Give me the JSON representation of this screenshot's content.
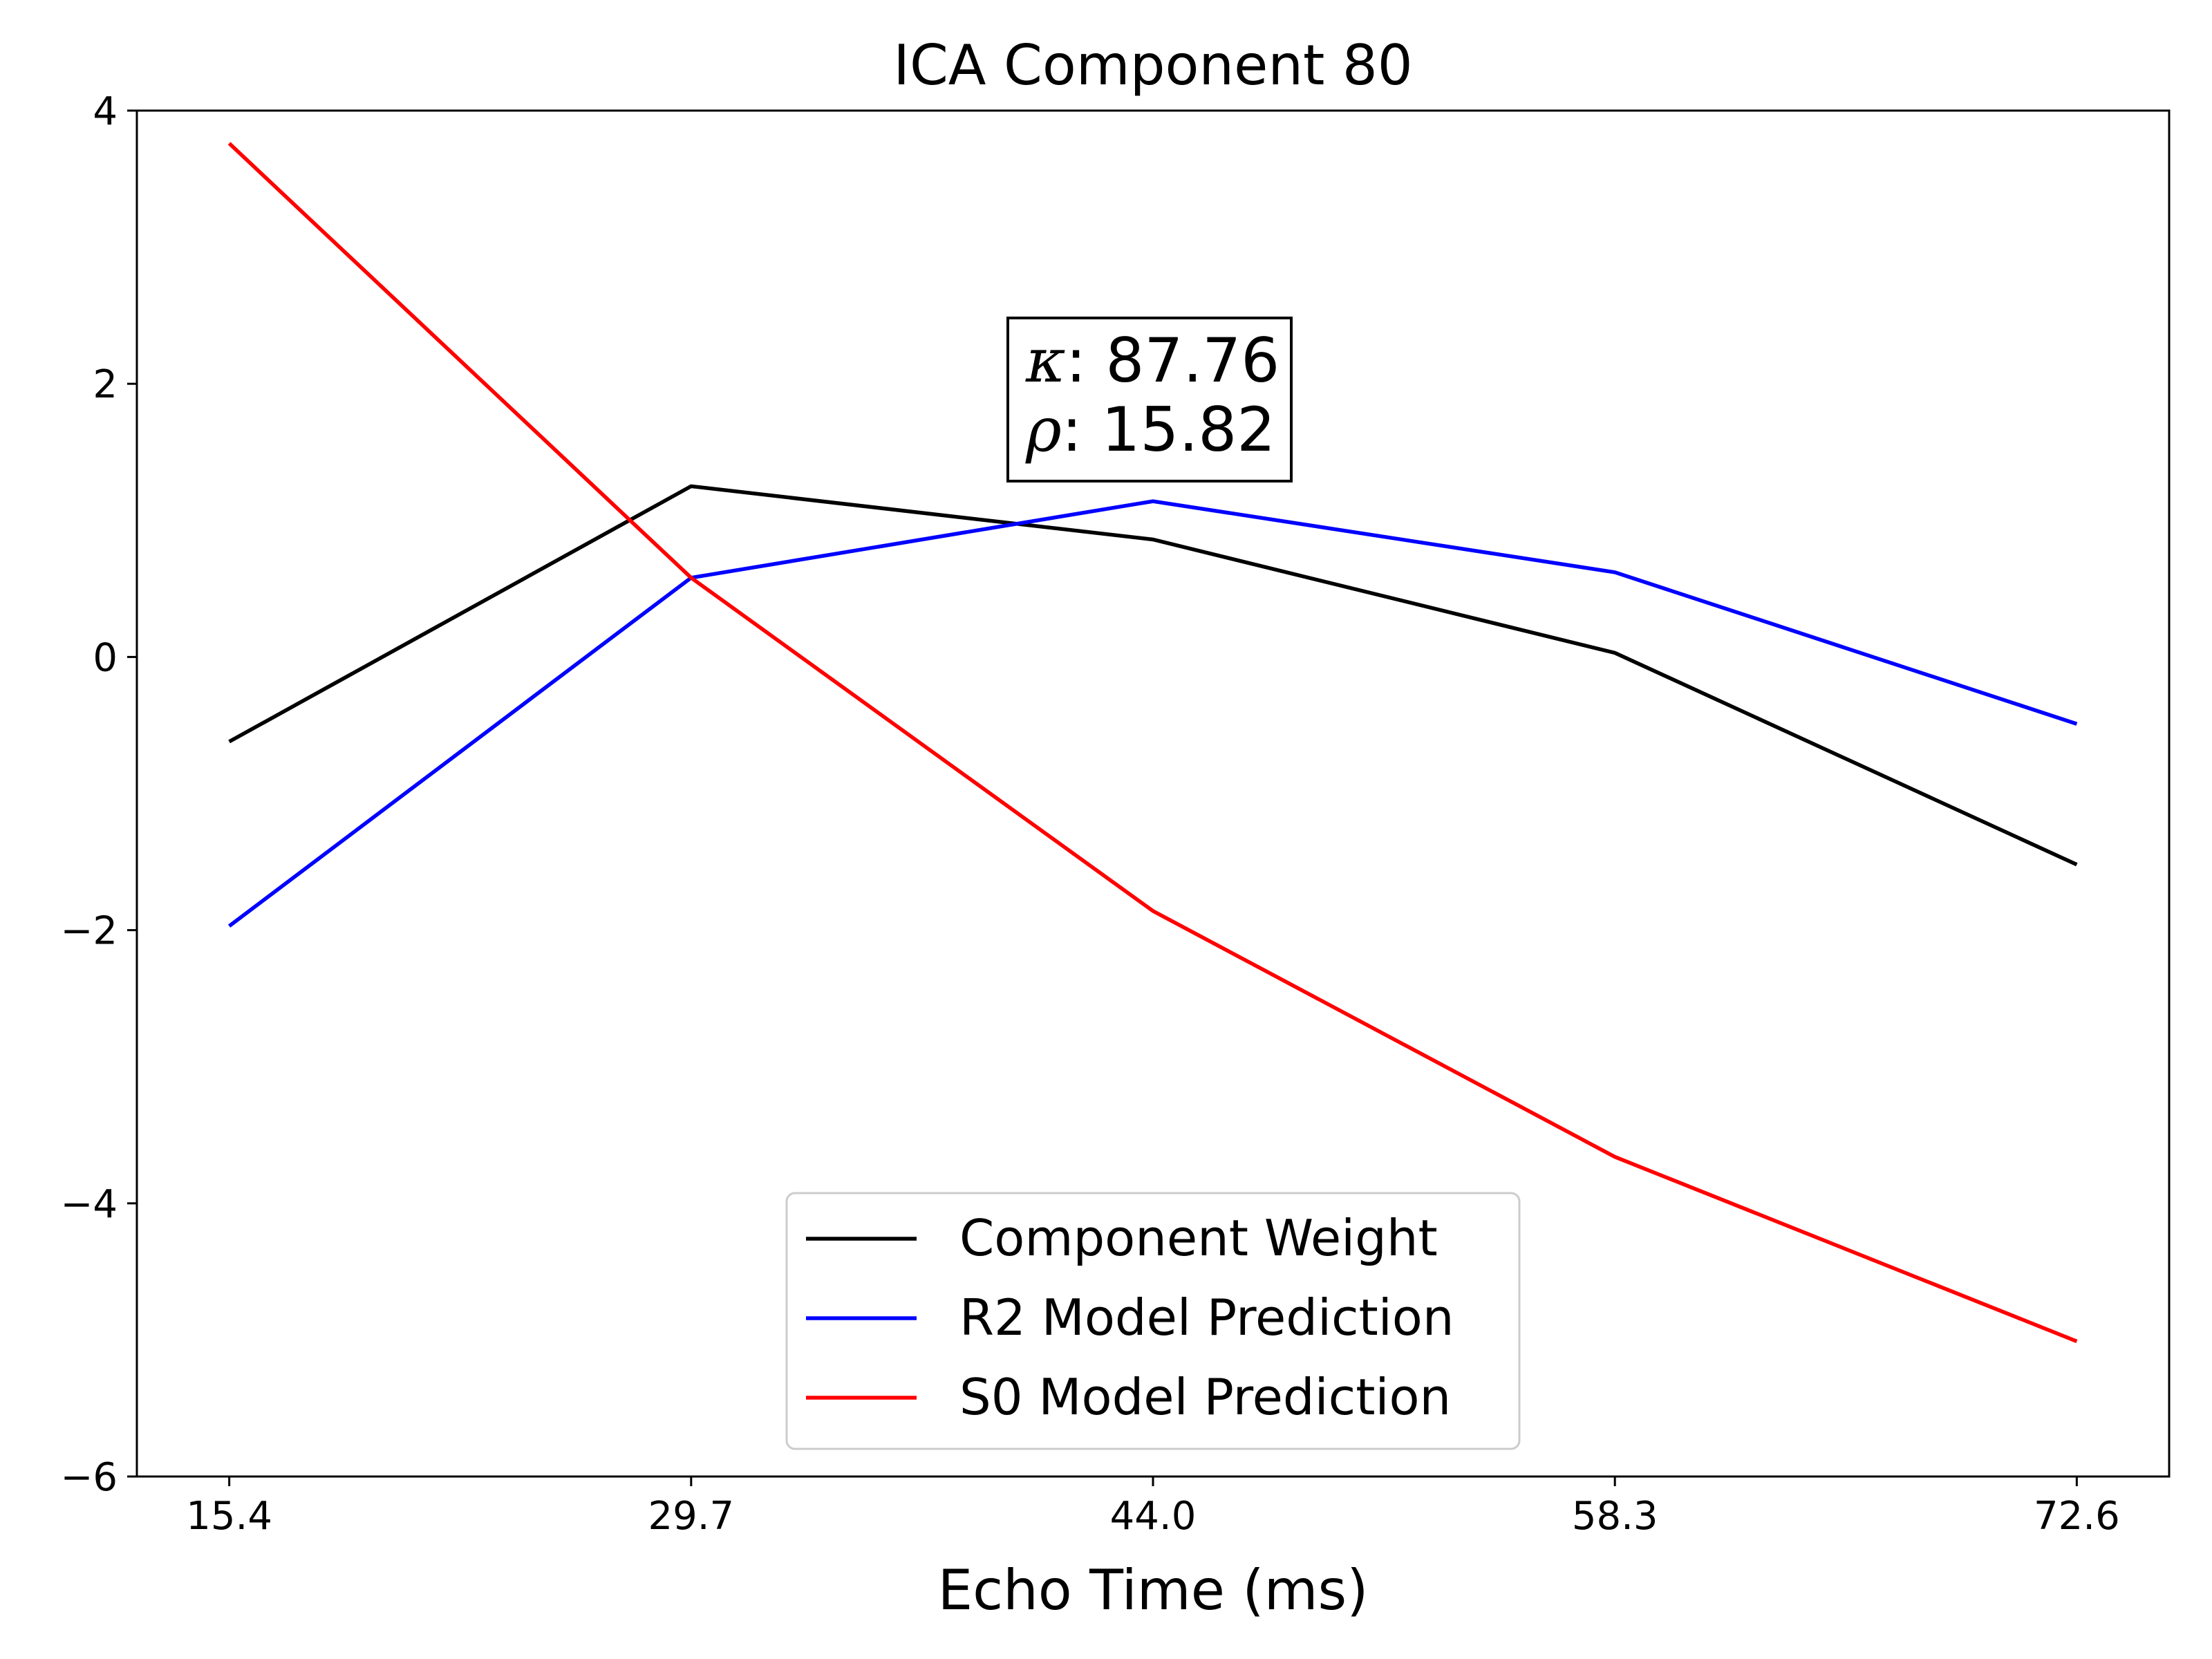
{
  "chart_data": {
    "type": "line",
    "title": "ICA Component 80",
    "xlabel": "Echo Time (ms)",
    "ylabel": "",
    "x": [
      15.4,
      29.7,
      44.0,
      58.3,
      72.6
    ],
    "xticks": [
      "15.4",
      "29.7",
      "44.0",
      "58.3",
      "72.6"
    ],
    "yticks": [
      4,
      2,
      0,
      -2,
      -4,
      -6
    ],
    "ytick_labels": [
      "4",
      "2",
      "0",
      "−2",
      "−4",
      "−6"
    ],
    "xlim": [
      12.54,
      75.46
    ],
    "ylim": [
      -6,
      4
    ],
    "grid": false,
    "legend_position": "lower-center",
    "series": [
      {
        "name": "Component Weight",
        "color": "#000000",
        "values": [
          -0.62,
          1.25,
          0.86,
          0.03,
          -1.52
        ]
      },
      {
        "name": "R2 Model Prediction",
        "color": "#0000ff",
        "values": [
          -1.97,
          0.58,
          1.14,
          0.62,
          -0.49
        ]
      },
      {
        "name": "S0 Model Prediction",
        "color": "#ff0000",
        "values": [
          3.76,
          0.58,
          -1.86,
          -3.66,
          -5.01
        ]
      }
    ],
    "annotation": {
      "lines": [
        {
          "symbol": "κ",
          "text": ": 87.76"
        },
        {
          "symbol": "ρ",
          "text": ": 15.82"
        }
      ]
    }
  }
}
